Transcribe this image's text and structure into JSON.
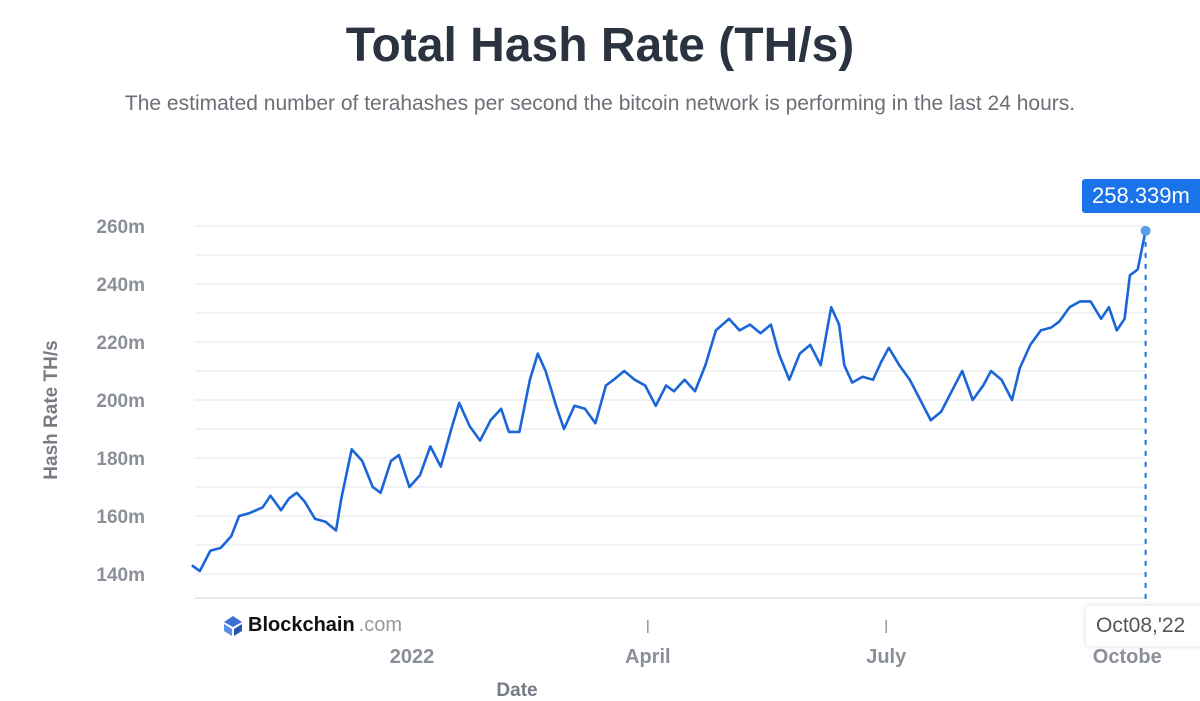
{
  "chart_data": {
    "type": "line",
    "title": "Total Hash Rate (TH/s)",
    "subtitle": "The estimated number of terahashes per second the bitcoin network is performing in the last 24 hours.",
    "xlabel": "Date",
    "ylabel": "Hash Rate TH/s",
    "ylim": [
      135,
      265
    ],
    "yticks": [
      140,
      160,
      180,
      200,
      220,
      240,
      260
    ],
    "ytick_labels": [
      "140m",
      "160m",
      "180m",
      "200m",
      "220m",
      "240m",
      "260m"
    ],
    "xticks": [
      {
        "date": "2022-01-01",
        "label": "2022"
      },
      {
        "date": "2022-04-01",
        "label": "April"
      },
      {
        "date": "2022-07-01",
        "label": "July"
      },
      {
        "date": "2022-10-01",
        "label": "Octobe"
      }
    ],
    "grid": true,
    "line_color": "#1a66d9",
    "tooltip": {
      "value": "258.339m",
      "date": "Oct08,'22"
    },
    "watermark": "Blockchain.com",
    "series": [
      {
        "unit": "million TH/s",
        "points": [
          [
            "2021-10-09",
            143
          ],
          [
            "2021-10-12",
            141
          ],
          [
            "2021-10-16",
            148
          ],
          [
            "2021-10-20",
            149
          ],
          [
            "2021-10-24",
            153
          ],
          [
            "2021-10-27",
            160
          ],
          [
            "2021-10-31",
            161
          ],
          [
            "2021-11-05",
            163
          ],
          [
            "2021-11-08",
            167
          ],
          [
            "2021-11-12",
            162
          ],
          [
            "2021-11-15",
            166
          ],
          [
            "2021-11-18",
            168
          ],
          [
            "2021-11-21",
            165
          ],
          [
            "2021-11-25",
            159
          ],
          [
            "2021-11-29",
            158
          ],
          [
            "2021-12-03",
            155
          ],
          [
            "2021-12-05",
            166
          ],
          [
            "2021-12-09",
            183
          ],
          [
            "2021-12-13",
            179
          ],
          [
            "2021-12-17",
            170
          ],
          [
            "2021-12-20",
            168
          ],
          [
            "2021-12-24",
            179
          ],
          [
            "2021-12-27",
            181
          ],
          [
            "2021-12-31",
            170
          ],
          [
            "2022-01-04",
            174
          ],
          [
            "2022-01-08",
            184
          ],
          [
            "2022-01-12",
            177
          ],
          [
            "2022-01-16",
            190
          ],
          [
            "2022-01-19",
            199
          ],
          [
            "2022-01-23",
            191
          ],
          [
            "2022-01-27",
            186
          ],
          [
            "2022-01-31",
            193
          ],
          [
            "2022-02-04",
            197
          ],
          [
            "2022-02-07",
            189
          ],
          [
            "2022-02-11",
            189
          ],
          [
            "2022-02-15",
            207
          ],
          [
            "2022-02-18",
            216
          ],
          [
            "2022-02-21",
            210
          ],
          [
            "2022-02-25",
            198
          ],
          [
            "2022-02-28",
            190
          ],
          [
            "2022-03-04",
            198
          ],
          [
            "2022-03-08",
            197
          ],
          [
            "2022-03-12",
            192
          ],
          [
            "2022-03-16",
            205
          ],
          [
            "2022-03-19",
            207
          ],
          [
            "2022-03-23",
            210
          ],
          [
            "2022-03-27",
            207
          ],
          [
            "2022-03-31",
            205
          ],
          [
            "2022-04-04",
            198
          ],
          [
            "2022-04-08",
            205
          ],
          [
            "2022-04-11",
            203
          ],
          [
            "2022-04-15",
            207
          ],
          [
            "2022-04-19",
            203
          ],
          [
            "2022-04-23",
            212
          ],
          [
            "2022-04-27",
            224
          ],
          [
            "2022-05-02",
            228
          ],
          [
            "2022-05-06",
            224
          ],
          [
            "2022-05-10",
            226
          ],
          [
            "2022-05-14",
            223
          ],
          [
            "2022-05-18",
            226
          ],
          [
            "2022-05-21",
            216
          ],
          [
            "2022-05-25",
            207
          ],
          [
            "2022-05-29",
            216
          ],
          [
            "2022-06-02",
            219
          ],
          [
            "2022-06-06",
            212
          ],
          [
            "2022-06-10",
            232
          ],
          [
            "2022-06-13",
            226
          ],
          [
            "2022-06-15",
            212
          ],
          [
            "2022-06-18",
            206
          ],
          [
            "2022-06-22",
            208
          ],
          [
            "2022-06-26",
            207
          ],
          [
            "2022-06-29",
            213
          ],
          [
            "2022-07-02",
            218
          ],
          [
            "2022-07-06",
            212
          ],
          [
            "2022-07-10",
            207
          ],
          [
            "2022-07-14",
            200
          ],
          [
            "2022-07-18",
            193
          ],
          [
            "2022-07-22",
            196
          ],
          [
            "2022-07-26",
            203
          ],
          [
            "2022-07-30",
            210
          ],
          [
            "2022-08-03",
            200
          ],
          [
            "2022-08-07",
            205
          ],
          [
            "2022-08-10",
            210
          ],
          [
            "2022-08-14",
            207
          ],
          [
            "2022-08-18",
            200
          ],
          [
            "2022-08-21",
            211
          ],
          [
            "2022-08-25",
            219
          ],
          [
            "2022-08-29",
            224
          ],
          [
            "2022-09-02",
            225
          ],
          [
            "2022-09-05",
            227
          ],
          [
            "2022-09-09",
            232
          ],
          [
            "2022-09-13",
            234
          ],
          [
            "2022-09-17",
            234
          ],
          [
            "2022-09-21",
            228
          ],
          [
            "2022-09-24",
            232
          ],
          [
            "2022-09-27",
            224
          ],
          [
            "2022-09-30",
            228
          ],
          [
            "2022-10-02",
            243
          ],
          [
            "2022-10-05",
            245
          ],
          [
            "2022-10-08",
            258.339
          ]
        ]
      }
    ]
  }
}
